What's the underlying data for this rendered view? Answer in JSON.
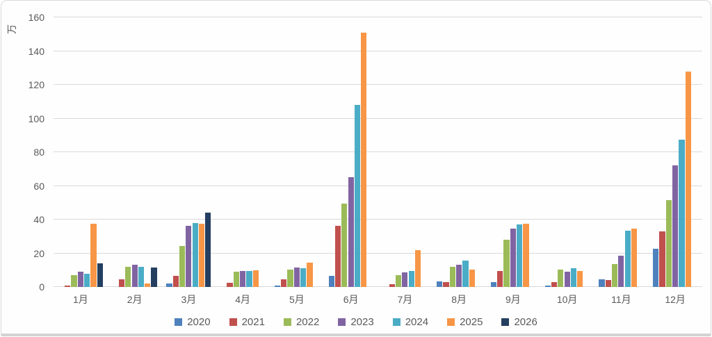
{
  "chart_data": {
    "type": "bar",
    "title": "",
    "ylabel": "万",
    "xlabel": "",
    "ylim": [
      0,
      160
    ],
    "ytick_step": 20,
    "grid": true,
    "legend_position": "bottom",
    "categories": [
      "1月",
      "2月",
      "3月",
      "4月",
      "5月",
      "6月",
      "7月",
      "8月",
      "9月",
      "10月",
      "11月",
      "12月"
    ],
    "series": [
      {
        "name": "2020",
        "color": "#4F81BD",
        "values": [
          0,
          0,
          2,
          0,
          1,
          6.5,
          0,
          3.5,
          3,
          1,
          4.5,
          22.5
        ]
      },
      {
        "name": "2021",
        "color": "#C0504D",
        "values": [
          1,
          4.5,
          6.5,
          2.5,
          4.5,
          36.5,
          1.5,
          3,
          9.5,
          3,
          4,
          33
        ]
      },
      {
        "name": "2022",
        "color": "#9BBB59",
        "values": [
          7,
          12,
          24.5,
          9,
          10.5,
          49.5,
          7,
          12,
          28,
          10.5,
          13.5,
          51.5
        ]
      },
      {
        "name": "2023",
        "color": "#8064A2",
        "values": [
          9,
          13,
          36.5,
          9.5,
          11.5,
          65,
          8.5,
          13,
          34.5,
          9,
          18.5,
          72
        ]
      },
      {
        "name": "2024",
        "color": "#4BACC6",
        "values": [
          8,
          12,
          38,
          9.5,
          11,
          108,
          9.5,
          15.5,
          37,
          11,
          33.5,
          87.5
        ]
      },
      {
        "name": "2025",
        "color": "#F79646",
        "values": [
          37.5,
          2,
          37.5,
          10,
          14.5,
          151,
          22,
          10.5,
          37.5,
          9.5,
          34.5,
          128
        ]
      },
      {
        "name": "2026",
        "color": "#243F60",
        "values": [
          14,
          11.5,
          44,
          0,
          0,
          0,
          0,
          0,
          0,
          0,
          0,
          0
        ]
      }
    ]
  },
  "style": {
    "gridline_color": "#d9d9d9",
    "text_color": "#595959",
    "background": "#fefefe"
  }
}
